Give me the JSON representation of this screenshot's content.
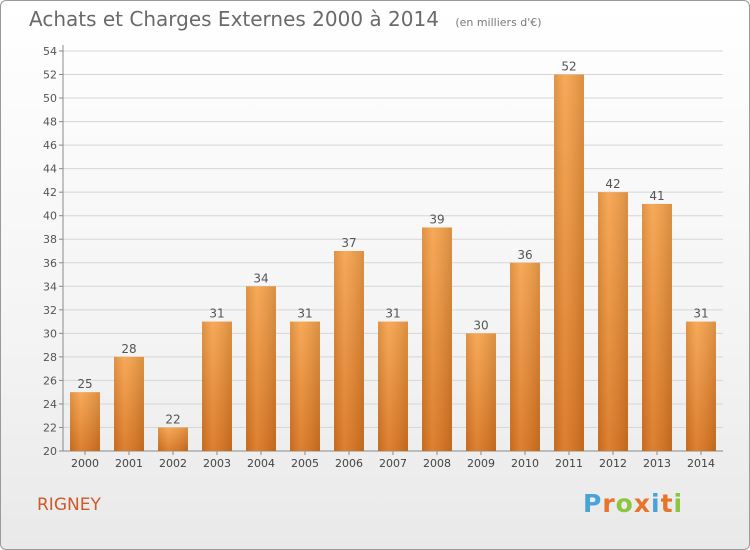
{
  "header": {
    "title": "Achats et Charges Externes 2000 à 2014",
    "subtitle": "(en milliers d'€)"
  },
  "footer": {
    "commune": "RIGNEY",
    "logo_text": "Proxiti",
    "logo_letters": [
      {
        "ch": "P",
        "color": "#4aa3d8"
      },
      {
        "ch": "r",
        "color": "#e8742a"
      },
      {
        "ch": "o",
        "color": "#8cc63f"
      },
      {
        "ch": "x",
        "color": "#e8742a"
      },
      {
        "ch": "i",
        "color": "#4aa3d8"
      },
      {
        "ch": "t",
        "color": "#e8742a"
      },
      {
        "ch": "i",
        "color": "#8cc63f"
      }
    ]
  },
  "chart_data": {
    "type": "bar",
    "categories": [
      "2000",
      "2001",
      "2002",
      "2003",
      "2004",
      "2005",
      "2006",
      "2007",
      "2008",
      "2009",
      "2010",
      "2011",
      "2012",
      "2013",
      "2014"
    ],
    "values": [
      25,
      28,
      22,
      31,
      34,
      31,
      37,
      31,
      39,
      30,
      36,
      52,
      42,
      41,
      31
    ],
    "ylim": [
      20,
      54
    ],
    "ytick_step": 2,
    "grid": true,
    "bar_color_top": "#f6a24a",
    "bar_color_bottom": "#d9741f"
  }
}
